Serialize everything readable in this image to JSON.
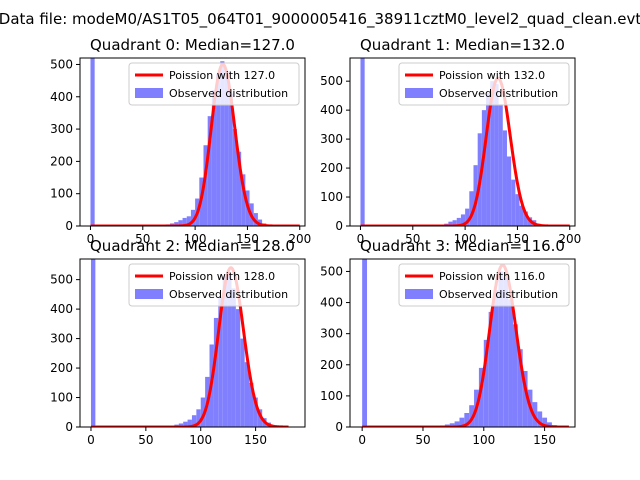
{
  "figure": {
    "suptitle": "Data file: modeM0/AS1T05_064T01_9000005416_38911cztM0_level2_quad_clean.evt"
  },
  "colors": {
    "hist": "#8080ff",
    "poisson": "#ff0000",
    "axes": "#000000",
    "background": "#ffffff"
  },
  "chart_data": [
    {
      "type": "bar",
      "title": "Quadrant 0: Median=127.0",
      "xlim": [
        -10,
        205
      ],
      "ylim": [
        0,
        520
      ],
      "xticks": [
        0,
        50,
        100,
        150,
        200
      ],
      "yticks": [
        0,
        100,
        200,
        300,
        400,
        500
      ],
      "legend": {
        "placement": "top-right",
        "entries": [
          "Poission with 127.0",
          "Observed distribution"
        ]
      },
      "bin_width": 4,
      "hist": {
        "x": [
          0,
          64,
          68,
          72,
          76,
          80,
          84,
          88,
          92,
          96,
          100,
          104,
          108,
          112,
          116,
          120,
          124,
          128,
          132,
          136,
          140,
          144,
          148,
          152,
          156,
          160,
          164,
          168
        ],
        "counts": [
          560,
          2,
          3,
          5,
          8,
          12,
          18,
          25,
          30,
          50,
          85,
          150,
          250,
          340,
          420,
          470,
          510,
          480,
          410,
          300,
          230,
          160,
          110,
          70,
          40,
          20,
          8,
          3
        ]
      },
      "poisson": {
        "mean": 127.0,
        "peak": 500,
        "xrange": [
          0,
          200
        ]
      }
    },
    {
      "type": "bar",
      "title": "Quadrant 1: Median=132.0",
      "xlim": [
        -10,
        205
      ],
      "ylim": [
        0,
        580
      ],
      "xticks": [
        0,
        50,
        100,
        150,
        200
      ],
      "yticks": [
        0,
        100,
        200,
        300,
        400,
        500
      ],
      "legend": {
        "placement": "top-right",
        "entries": [
          "Poission with 132.0",
          "Observed distribution"
        ]
      },
      "bin_width": 4,
      "hist": {
        "x": [
          0,
          68,
          72,
          76,
          80,
          84,
          88,
          92,
          96,
          100,
          104,
          108,
          112,
          116,
          120,
          124,
          128,
          132,
          136,
          140,
          144,
          148,
          152,
          156,
          160,
          164,
          168,
          172
        ],
        "counts": [
          600,
          2,
          3,
          5,
          8,
          15,
          20,
          28,
          40,
          60,
          120,
          210,
          320,
          400,
          460,
          500,
          490,
          420,
          330,
          240,
          160,
          110,
          70,
          50,
          30,
          20,
          8,
          3
        ]
      },
      "poisson": {
        "mean": 132.0,
        "peak": 510,
        "xrange": [
          0,
          200
        ]
      }
    },
    {
      "type": "bar",
      "title": "Quadrant 2: Median=128.0",
      "xlim": [
        -10,
        195
      ],
      "ylim": [
        0,
        570
      ],
      "xticks": [
        0,
        50,
        100,
        150
      ],
      "yticks": [
        0,
        100,
        200,
        300,
        400,
        500
      ],
      "legend": {
        "placement": "top-right",
        "entries": [
          "Poission with 128.0",
          "Observed distribution"
        ]
      },
      "bin_width": 4,
      "hist": {
        "x": [
          0,
          64,
          68,
          72,
          76,
          80,
          84,
          88,
          92,
          96,
          100,
          104,
          108,
          112,
          116,
          120,
          124,
          128,
          132,
          136,
          140,
          144,
          148,
          152,
          156,
          160,
          164,
          168
        ],
        "counts": [
          620,
          2,
          3,
          5,
          8,
          12,
          18,
          25,
          40,
          60,
          100,
          170,
          280,
          370,
          440,
          510,
          520,
          470,
          400,
          300,
          220,
          150,
          100,
          60,
          30,
          15,
          6,
          2
        ]
      },
      "poisson": {
        "mean": 128.0,
        "peak": 540,
        "xrange": [
          0,
          180
        ]
      }
    },
    {
      "type": "bar",
      "title": "Quadrant 3: Median=116.0",
      "xlim": [
        -10,
        175
      ],
      "ylim": [
        0,
        540
      ],
      "xticks": [
        0,
        50,
        100,
        150
      ],
      "yticks": [
        0,
        100,
        200,
        300,
        400,
        500
      ],
      "legend": {
        "placement": "top-right",
        "entries": [
          "Poission with 116.0",
          "Observed distribution"
        ]
      },
      "bin_width": 4,
      "hist": {
        "x": [
          0,
          56,
          60,
          64,
          68,
          72,
          76,
          80,
          84,
          88,
          92,
          96,
          100,
          104,
          108,
          112,
          116,
          120,
          124,
          128,
          132,
          136,
          140,
          144,
          148,
          152,
          156,
          160
        ],
        "counts": [
          560,
          2,
          3,
          5,
          8,
          12,
          18,
          30,
          45,
          70,
          120,
          190,
          280,
          370,
          440,
          500,
          480,
          410,
          330,
          250,
          180,
          120,
          80,
          50,
          30,
          15,
          6,
          2
        ]
      },
      "poisson": {
        "mean": 116.0,
        "peak": 520,
        "xrange": [
          0,
          170
        ]
      }
    }
  ]
}
